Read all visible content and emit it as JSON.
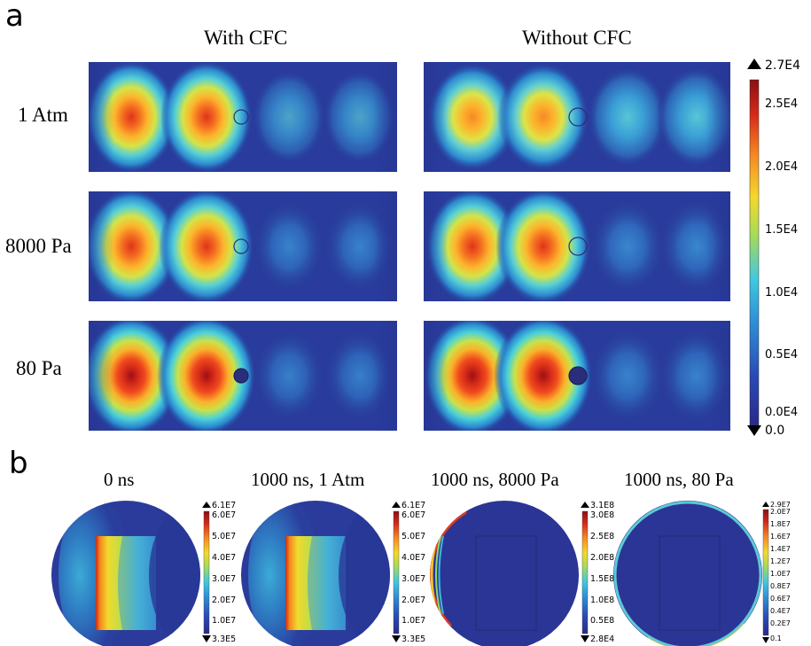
{
  "panel_a": {
    "letter": "a",
    "columns": [
      "With CFC",
      "Without CFC"
    ],
    "rows": [
      "1 Atm",
      "8000 Pa",
      "80 Pa"
    ],
    "colorbar": {
      "max_label": "2.7E4",
      "min_label": "0.0",
      "ticks": [
        "2.5E4",
        "2.0E4",
        "1.5E4",
        "1.0E4",
        "0.5E4",
        "0.0E4"
      ]
    }
  },
  "panel_b": {
    "letter": "b",
    "plots": [
      {
        "title": "0 ns",
        "max_label": "6.1E7",
        "min_label": "3.3E5",
        "ticks": [
          "6.0E7",
          "5.0E7",
          "4.0E7",
          "3.0E7",
          "2.0E7",
          "1.0E7"
        ]
      },
      {
        "title": "1000 ns, 1 Atm",
        "max_label": "6.1E7",
        "min_label": "3.3E5",
        "ticks": [
          "6.0E7",
          "5.0E7",
          "4.0E7",
          "3.0E7",
          "2.0E7",
          "1.0E7"
        ]
      },
      {
        "title": "1000 ns, 8000 Pa",
        "max_label": "3.1E8",
        "min_label": "2.8E4",
        "ticks": [
          "3.0E8",
          "2.5E8",
          "2.0E8",
          "1.5E8",
          "1.0E8",
          "0.5E8"
        ]
      },
      {
        "title": "1000 ns, 80 Pa",
        "max_label": "2.9E7",
        "min_label": "0.1",
        "ticks": [
          "2.0E7",
          "1.8E7",
          "1.6E7",
          "1.4E7",
          "1.2E7",
          "1.0E7",
          "0.8E7",
          "0.6E7",
          "0.4E7",
          "0.2E7"
        ]
      }
    ]
  },
  "colors": {
    "jet_low": "#27338f",
    "jet_high": "#8b0f13"
  }
}
